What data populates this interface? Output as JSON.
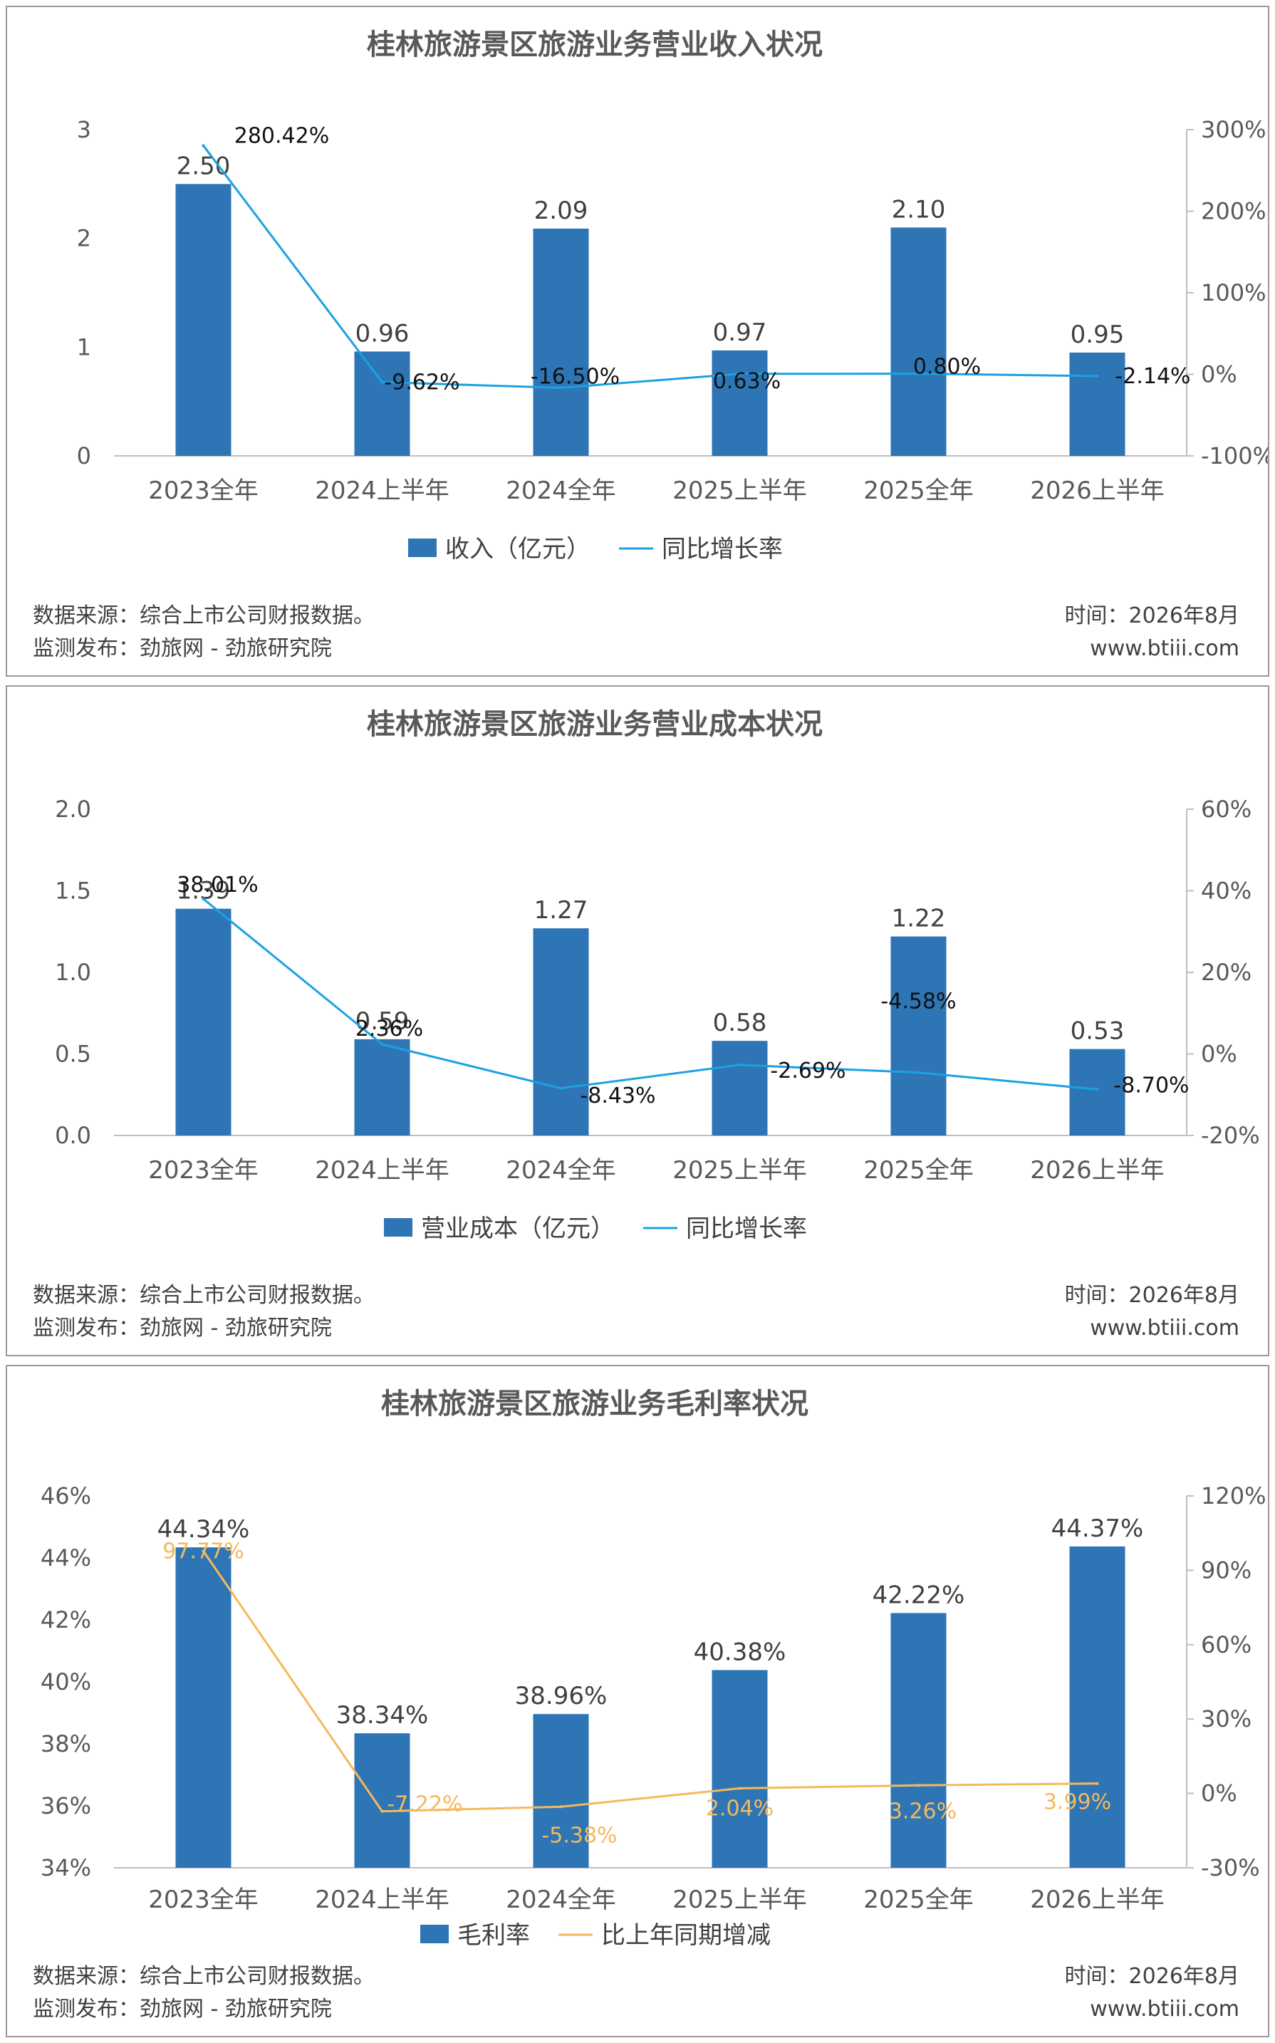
{
  "footer": {
    "source": "数据来源：综合上市公司财报数据。",
    "publisher": "监测发布：劲旅网 - 劲旅研究院",
    "time": "时间：2026年8月",
    "website": "www.btiii.com"
  },
  "colors": {
    "bar": "#2e75b6",
    "line_blue": "#1ba1e2",
    "line_orange": "#f5b95a",
    "axis": "#bfbfbf"
  },
  "chart_data": [
    {
      "type": "bar",
      "title": "桂林旅游景区旅游业务营业收入状况",
      "categories": [
        "2023全年",
        "2024上半年",
        "2024全年",
        "2025上半年",
        "2025全年",
        "2026上半年"
      ],
      "left_axis": {
        "ticks": [
          "0",
          "1",
          "2",
          "3"
        ],
        "ylim": [
          0,
          3
        ]
      },
      "right_axis": {
        "ticks": [
          "-100%",
          "0%",
          "100%",
          "200%",
          "300%"
        ],
        "ylim": [
          -100,
          300
        ]
      },
      "series": [
        {
          "name": "收入（亿元）",
          "kind": "bar",
          "axis": "left",
          "values": [
            2.5,
            0.96,
            2.09,
            0.97,
            2.1,
            0.95
          ],
          "labels": [
            "2.50",
            "0.96",
            "2.09",
            "0.97",
            "2.10",
            "0.95"
          ]
        },
        {
          "name": "同比增长率",
          "kind": "line",
          "axis": "right",
          "values": [
            280.42,
            -9.62,
            -16.5,
            0.63,
            0.8,
            -2.14
          ],
          "labels": [
            "280.42%",
            "-9.62%",
            "-16.50%",
            "0.63%",
            "0.80%",
            "-2.14%"
          ]
        }
      ],
      "legend": "bottom"
    },
    {
      "type": "bar",
      "title": "桂林旅游景区旅游业务营业成本状况",
      "categories": [
        "2023全年",
        "2024上半年",
        "2024全年",
        "2025上半年",
        "2025全年",
        "2026上半年"
      ],
      "left_axis": {
        "ticks": [
          "0.0",
          "0.5",
          "1.0",
          "1.5",
          "2.0"
        ],
        "ylim": [
          0,
          2
        ]
      },
      "right_axis": {
        "ticks": [
          "-20%",
          "0%",
          "20%",
          "40%",
          "60%"
        ],
        "ylim": [
          -20,
          60
        ]
      },
      "series": [
        {
          "name": "营业成本（亿元）",
          "kind": "bar",
          "axis": "left",
          "values": [
            1.39,
            0.59,
            1.27,
            0.58,
            1.22,
            0.53
          ],
          "labels": [
            "1.39",
            "0.59",
            "1.27",
            "0.58",
            "1.22",
            "0.53"
          ]
        },
        {
          "name": "同比增长率",
          "kind": "line",
          "axis": "right",
          "values": [
            38.01,
            2.36,
            -8.43,
            -2.69,
            -4.58,
            -8.7
          ],
          "labels": [
            "38.01%",
            "2.36%",
            "-8.43%",
            "-2.69%",
            "-4.58%",
            "-8.70%"
          ]
        }
      ],
      "legend": "bottom"
    },
    {
      "type": "bar",
      "title": "桂林旅游景区旅游业务毛利率状况",
      "categories": [
        "2023全年",
        "2024上半年",
        "2024全年",
        "2025上半年",
        "2025全年",
        "2026上半年"
      ],
      "left_axis": {
        "ticks": [
          "34%",
          "36%",
          "38%",
          "40%",
          "42%",
          "44%",
          "46%"
        ],
        "ylim": [
          34,
          46
        ]
      },
      "right_axis": {
        "ticks": [
          "-30%",
          "0%",
          "30%",
          "60%",
          "90%",
          "120%"
        ],
        "ylim": [
          -30,
          120
        ]
      },
      "series": [
        {
          "name": "毛利率",
          "kind": "bar",
          "axis": "left",
          "values": [
            44.34,
            38.34,
            38.96,
            40.38,
            42.22,
            44.37
          ],
          "labels": [
            "44.34%",
            "38.34%",
            "38.96%",
            "40.38%",
            "42.22%",
            "44.37%"
          ]
        },
        {
          "name": "比上年同期增减",
          "kind": "line",
          "axis": "right",
          "values": [
            97.77,
            -7.22,
            -5.38,
            2.04,
            3.26,
            3.99
          ],
          "labels": [
            "97.77%",
            "-7.22%",
            "-5.38%",
            "2.04%",
            "3.26%",
            "3.99%"
          ]
        }
      ],
      "legend": "bottom"
    }
  ]
}
